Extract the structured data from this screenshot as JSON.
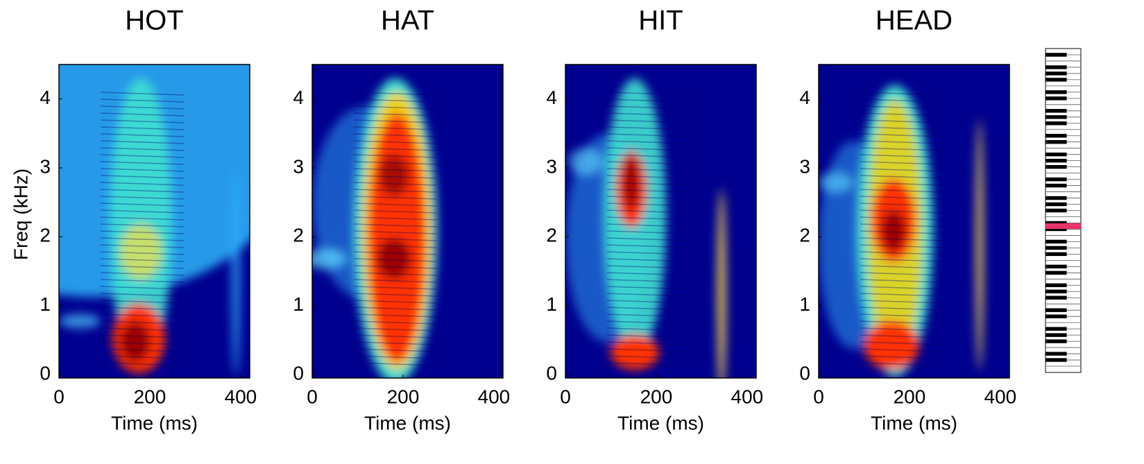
{
  "chart_data": [
    {
      "type": "spectrogram",
      "title": "HOT",
      "xlabel": "Time (ms)",
      "ylabel": "Freq (kHz)",
      "xlim": [
        0,
        420
      ],
      "ylim": [
        -0.05,
        4.5
      ],
      "xticks": [
        0,
        200,
        400
      ],
      "yticks": [
        0,
        1,
        2,
        3,
        4
      ]
    },
    {
      "type": "spectrogram",
      "title": "HAT",
      "xlabel": "Time (ms)",
      "xlim": [
        0,
        420
      ],
      "ylim": [
        -0.05,
        4.5
      ],
      "xticks": [
        0,
        200,
        400
      ],
      "yticks": [
        0,
        1,
        2,
        3,
        4
      ]
    },
    {
      "type": "spectrogram",
      "title": "HIT",
      "xlabel": "Time (ms)",
      "xlim": [
        0,
        420
      ],
      "ylim": [
        -0.05,
        4.5
      ],
      "xticks": [
        0,
        200,
        400
      ],
      "yticks": [
        0,
        1,
        2,
        3,
        4
      ]
    },
    {
      "type": "spectrogram",
      "title": "HEAD",
      "xlabel": "Time (ms)",
      "xlim": [
        0,
        420
      ],
      "ylim": [
        -0.05,
        4.5
      ],
      "xticks": [
        0,
        200,
        400
      ],
      "yticks": [
        0,
        1,
        2,
        3,
        4
      ]
    }
  ]
}
